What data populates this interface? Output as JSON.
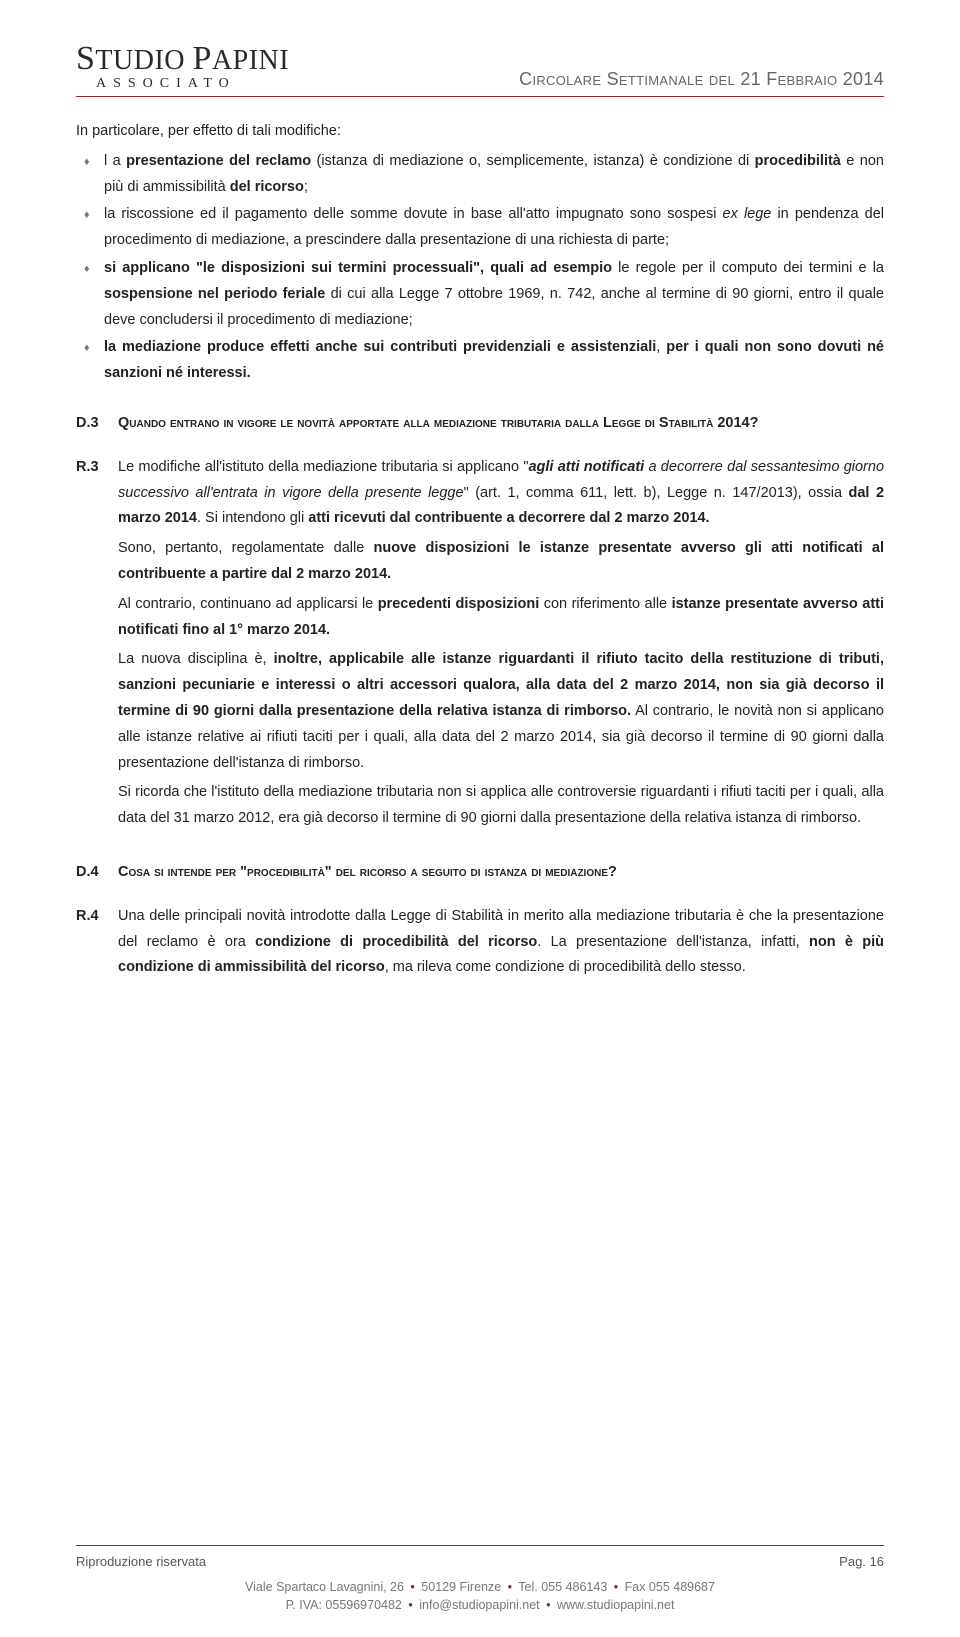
{
  "colors": {
    "rule": "#8b2328",
    "text": "#222222",
    "muted": "#666666",
    "bullet": "#777777",
    "footer": "#777777",
    "background": "#ffffff"
  },
  "header": {
    "logo_top_html": "<span class='big'>S</span>TUDIO <span class='big'>P</span>APINI",
    "logo_sub": "ASSOCIATO",
    "doc_title": "Circolare Settimanale del 21 Febbraio 2014"
  },
  "intro": "In particolare, per effetto di tali modifiche:",
  "bullets": [
    "l a <b>presentazione del reclamo</b> (istanza di mediazione o, semplicemente, istanza) è condizione di <b>procedibilità</b> e non più di ammissibilità <b>del ricorso</b>;",
    "la riscossione ed il pagamento delle somme dovute in base all'atto impugnato sono sospesi <em>ex lege</em> in pendenza del procedimento di mediazione, a prescindere dalla presentazione di una richiesta di parte;",
    "<b>si applicano \"le disposizioni sui termini processuali\", quali ad esempio</b> le regole per il computo dei termini e la <b>sospensione nel periodo feriale</b> di cui alla Legge 7 ottobre 1969, n. 742, anche al termine di 90 giorni, entro il quale deve concludersi il procedimento di mediazione;",
    "<b>la mediazione produce effetti anche sui contributi previdenziali e assistenziali</b>, <b>per i quali non sono dovuti né sanzioni né interessi.</b>"
  ],
  "qa": [
    {
      "q_label": "D.3",
      "q_text": "Quando entrano in vigore le novità apportate alla mediazione tributaria dalla Legge di Stabilità 2014?",
      "r_label": "R.3",
      "r_paras": [
        "Le modifiche all'istituto della mediazione tributaria si applicano \"<b><em>agli atti notificati</em></b> <em>a decorrere dal sessantesimo giorno successivo all'entrata in vigore della presente legge</em>\" (art. 1, comma 611, lett. b), Legge n. 147/2013), ossia <b>dal 2 marzo 2014</b>. Si intendono gli <b>atti ricevuti dal contribuente a decorrere dal 2 marzo 2014.</b>",
        "Sono, pertanto, regolamentate dalle <b>nuove disposizioni le istanze presentate avverso gli atti notificati al contribuente a partire dal 2 marzo 2014.</b>",
        "Al contrario, continuano ad applicarsi le <b>precedenti disposizioni</b> con riferimento alle <b>istanze presentate avverso atti notificati fino al 1° marzo 2014.</b>",
        "La nuova disciplina è, <b>inoltre, applicabile alle istanze riguardanti il rifiuto tacito della restituzione di tributi, sanzioni pecuniarie e interessi o altri accessori qualora, alla data del 2 marzo 2014, non sia già decorso il termine di 90 giorni dalla presentazione della relativa istanza di rimborso.</b> Al contrario, le novità non si applicano alle istanze relative ai rifiuti taciti per i quali, alla data del 2 marzo 2014, sia già decorso il termine di 90 giorni dalla presentazione dell'istanza di rimborso.",
        "Si ricorda che l'istituto della mediazione tributaria non si applica alle controversie riguardanti i rifiuti taciti per i quali, alla data del 31 marzo 2012, era già decorso il termine di 90 giorni dalla presentazione della relativa istanza di rimborso."
      ]
    },
    {
      "q_label": "D.4",
      "q_text": "Cosa si intende per \"procedibilità\" del ricorso a seguito di istanza di mediazione?",
      "r_label": "R.4",
      "r_paras": [
        "Una delle principali novità introdotte dalla Legge di Stabilità in merito alla mediazione tributaria è che la presentazione del reclamo è ora <b>condizione di procedibilità del ricorso</b>. La presentazione dell'istanza, infatti, <b>non è più condizione di ammissibilità del ricorso</b>, ma rileva come condizione di procedibilità dello stesso."
      ]
    }
  ],
  "footer": {
    "repro_left": "Riproduzione riservata",
    "repro_right": "Pag. 16",
    "line1_html": "Viale Spartaco Lavagnini, 26 <span class='dot'>•</span> 50129 Firenze <span class='dot'>•</span> Tel. 055 486143 <span class='dot'>•</span> Fax 055 489687",
    "line2_html": "P. IVA: 05596970482 <span class='dot'>•</span> info@studiopapini.net <span class='dot'>•</span> www.studiopapini.net"
  }
}
